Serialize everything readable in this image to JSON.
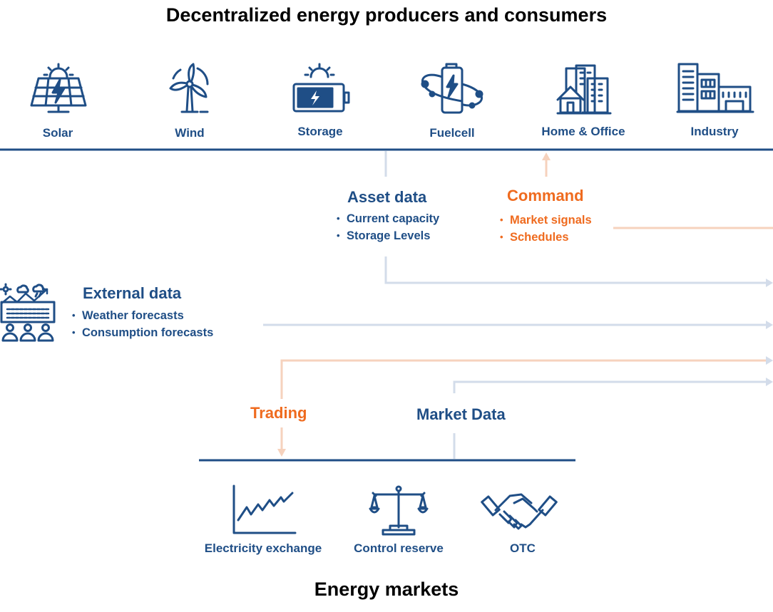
{
  "header": {
    "title": "Decentralized energy producers and consumers"
  },
  "producers": [
    {
      "label": "Solar",
      "icon": "solar-panel-icon"
    },
    {
      "label": "Wind",
      "icon": "wind-turbine-icon"
    },
    {
      "label": "Storage",
      "icon": "battery-storage-icon"
    },
    {
      "label": "Fuelcell",
      "icon": "fuel-cell-icon"
    },
    {
      "label": "Home & Office",
      "icon": "home-office-icon"
    },
    {
      "label": "Industry",
      "icon": "industry-icon"
    }
  ],
  "asset_data": {
    "title": "Asset data",
    "items": [
      "Current capacity",
      "Storage Levels"
    ]
  },
  "command": {
    "title": "Command",
    "items": [
      "Market signals",
      "Schedules"
    ]
  },
  "external_data": {
    "title": "External data",
    "items": [
      "Weather forecasts",
      "Consumption forecasts"
    ]
  },
  "trading": {
    "title": "Trading"
  },
  "market_data": {
    "title": "Market Data"
  },
  "markets": [
    {
      "label": "Electricity exchange",
      "icon": "rising-chart-icon"
    },
    {
      "label": "Control reserve",
      "icon": "balance-scale-icon"
    },
    {
      "label": "OTC",
      "icon": "handshake-icon"
    }
  ],
  "footer": {
    "title": "Energy markets"
  },
  "colors": {
    "primary": "#1f4e86",
    "accent": "#ef6b1f",
    "flow_blue": "#d3dcea",
    "flow_orange": "#f6d2bd"
  }
}
